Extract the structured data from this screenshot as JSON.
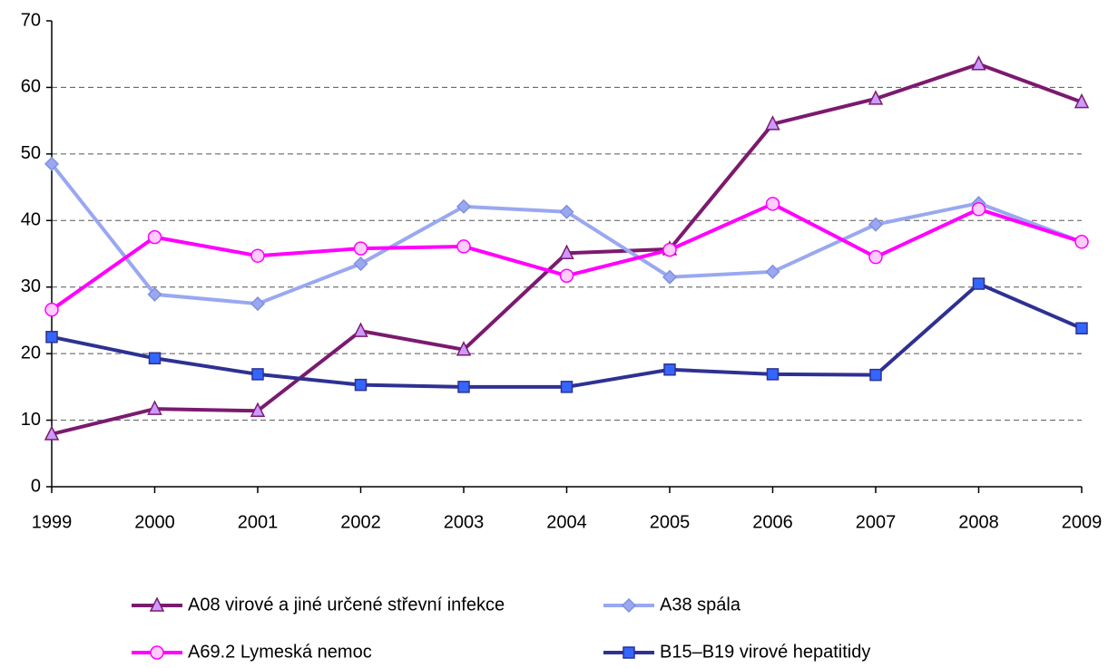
{
  "chart_data": {
    "type": "line",
    "x": [
      1999,
      2000,
      2001,
      2002,
      2003,
      2004,
      2005,
      2006,
      2007,
      2008,
      2009
    ],
    "xlim": [
      1999,
      2009
    ],
    "xticks": [
      1999,
      2000,
      2001,
      2002,
      2003,
      2004,
      2005,
      2006,
      2007,
      2008,
      2009
    ],
    "ylim": [
      0,
      70
    ],
    "yticks": [
      0,
      10,
      20,
      30,
      40,
      50,
      60,
      70
    ],
    "grid": true,
    "legend": "bottom",
    "series": [
      {
        "name": "A08 virové a jiné určené střevní infekce",
        "color": "#7b1a6e",
        "marker": "triangle",
        "values": [
          7.9,
          11.7,
          11.4,
          23.4,
          20.6,
          35.1,
          35.7,
          54.5,
          58.3,
          63.5,
          57.8
        ]
      },
      {
        "name": "A38 spála",
        "color": "#99a8f0",
        "marker": "diamond",
        "values": [
          48.5,
          28.9,
          27.5,
          33.5,
          42.1,
          41.3,
          31.5,
          32.3,
          39.4,
          42.6,
          36.8
        ]
      },
      {
        "name": "A69.2 Lymeská nemoc",
        "color": "#ff00ff",
        "marker": "circle",
        "values": [
          26.6,
          37.5,
          34.7,
          35.8,
          36.1,
          31.7,
          35.6,
          42.5,
          34.5,
          41.7,
          36.8
        ]
      },
      {
        "name": "B15–B19 virové hepatitidy",
        "color": "#2e3192",
        "marker": "square",
        "values": [
          22.5,
          19.3,
          16.9,
          15.3,
          15.0,
          15.0,
          17.6,
          16.9,
          16.8,
          30.5,
          23.8
        ]
      }
    ]
  }
}
